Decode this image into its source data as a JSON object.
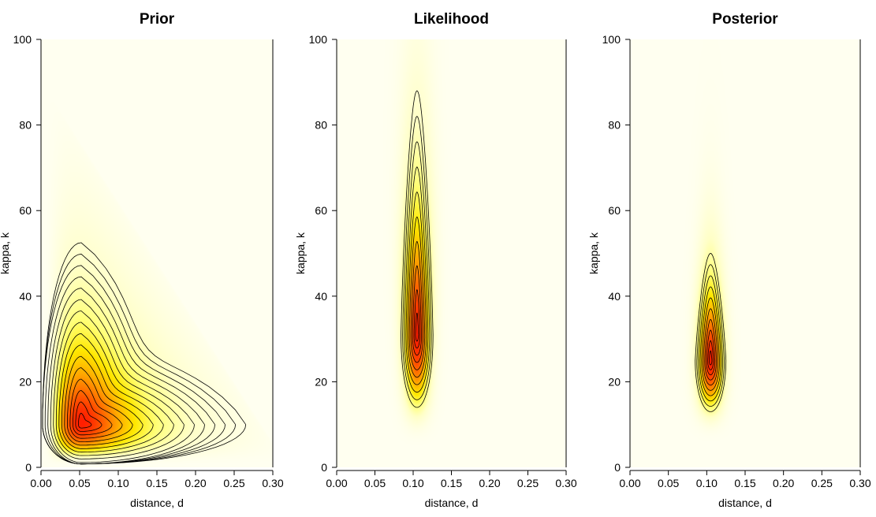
{
  "chart_data": [
    {
      "type": "heatmap",
      "title": "Prior",
      "xlabel": "distance, d",
      "ylabel": "kappa, k",
      "xlim": [
        0,
        0.3
      ],
      "ylim": [
        0,
        100
      ],
      "xticks": [
        "0.00",
        "0.05",
        "0.10",
        "0.15",
        "0.20",
        "0.25",
        "0.30"
      ],
      "yticks": [
        "0",
        "20",
        "40",
        "60",
        "80",
        "100"
      ],
      "colormap": [
        "#fffff0",
        "#ffff80",
        "#ffe000",
        "#ff9000",
        "#ff2000"
      ],
      "contours": [
        {
          "x": 0.052,
          "y": 10.0
        },
        {
          "x": 0.052,
          "y": 10.5
        },
        {
          "x": 0.053,
          "y": 11.3
        },
        {
          "x": 0.054,
          "y": 12.2
        },
        {
          "x": 0.055,
          "y": 13.0
        },
        {
          "x": 0.056,
          "y": 13.8
        },
        {
          "x": 0.057,
          "y": 14.6
        },
        {
          "x": 0.058,
          "y": 15.4
        },
        {
          "x": 0.059,
          "y": 16.2
        },
        {
          "x": 0.06,
          "y": 17.0
        },
        {
          "x": 0.062,
          "y": 18.0
        },
        {
          "x": 0.064,
          "y": 19.2
        },
        {
          "x": 0.066,
          "y": 20.4
        },
        {
          "x": 0.07,
          "y": 22.0
        },
        {
          "x": 0.075,
          "y": 24.0
        },
        {
          "x": 0.083,
          "y": 27.5
        }
      ],
      "contour_peak": {
        "x": 0.052,
        "y": 10.0
      },
      "outer_contour_extent": {
        "x_max": 0.265,
        "y_max": 52.5
      },
      "shading_peak": {
        "x": 0.05,
        "y": 10
      }
    },
    {
      "type": "heatmap",
      "title": "Likelihood",
      "xlabel": "distance, d",
      "ylabel": "kappa, k",
      "xlim": [
        0,
        0.3
      ],
      "ylim": [
        0,
        100
      ],
      "xticks": [
        "0.00",
        "0.05",
        "0.10",
        "0.15",
        "0.20",
        "0.25",
        "0.30"
      ],
      "yticks": [
        "0",
        "20",
        "40",
        "60",
        "80",
        "100"
      ],
      "contour_peak": {
        "x": 0.105,
        "y": 31
      },
      "outer_contour_extent": {
        "x_min": 0.085,
        "x_max": 0.127,
        "y_min": 14,
        "y_max": 88
      }
    },
    {
      "type": "heatmap",
      "title": "Posterior",
      "xlabel": "distance, d",
      "ylabel": "kappa, k",
      "xlim": [
        0,
        0.3
      ],
      "ylim": [
        0,
        100
      ],
      "xticks": [
        "0.00",
        "0.05",
        "0.10",
        "0.15",
        "0.20",
        "0.25",
        "0.30"
      ],
      "yticks": [
        "0",
        "20",
        "40",
        "60",
        "80",
        "100"
      ],
      "contour_peak": {
        "x": 0.105,
        "y": 25
      },
      "outer_contour_extent": {
        "x_min": 0.087,
        "x_max": 0.127,
        "y_min": 13,
        "y_max": 50
      }
    }
  ]
}
